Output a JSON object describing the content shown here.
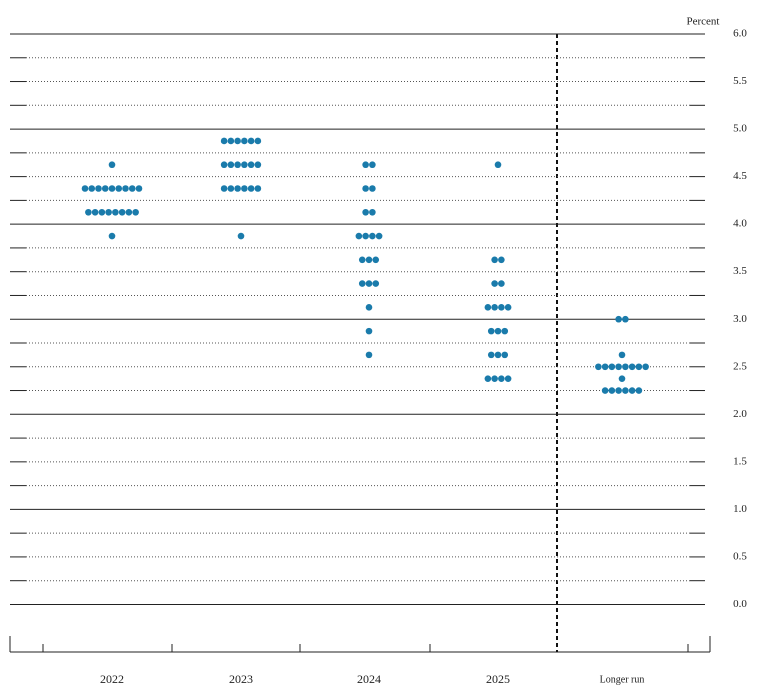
{
  "chart_data": {
    "type": "dot",
    "y_label": "Percent",
    "categories": [
      "2022",
      "2023",
      "2024",
      "2025",
      "Longer run"
    ],
    "color": "#1a7bab",
    "values": [
      [
        4.625,
        4.375,
        4.375,
        4.375,
        4.375,
        4.375,
        4.375,
        4.375,
        4.375,
        4.375,
        4.125,
        4.125,
        4.125,
        4.125,
        4.125,
        4.125,
        4.125,
        4.125,
        3.875
      ],
      [
        4.875,
        4.875,
        4.875,
        4.875,
        4.875,
        4.875,
        4.625,
        4.625,
        4.625,
        4.625,
        4.625,
        4.625,
        4.375,
        4.375,
        4.375,
        4.375,
        4.375,
        4.375,
        3.875
      ],
      [
        4.625,
        4.625,
        4.375,
        4.375,
        4.125,
        4.125,
        3.875,
        3.875,
        3.875,
        3.875,
        3.625,
        3.625,
        3.625,
        3.375,
        3.375,
        3.375,
        3.125,
        2.875,
        2.625
      ],
      [
        4.625,
        3.625,
        3.625,
        3.375,
        3.375,
        3.125,
        3.125,
        3.125,
        3.125,
        2.875,
        2.875,
        2.875,
        2.625,
        2.625,
        2.625,
        2.375,
        2.375,
        2.375,
        2.375
      ],
      [
        3.0,
        3.0,
        2.625,
        2.5,
        2.5,
        2.5,
        2.5,
        2.5,
        2.5,
        2.5,
        2.5,
        2.375,
        2.25,
        2.25,
        2.25,
        2.25,
        2.25,
        2.25
      ]
    ],
    "ylim": [
      -0.5,
      6.0
    ],
    "yticks": [
      {
        "value": 0,
        "label": "0.0"
      },
      {
        "value": 0.5,
        "label": "0.5"
      },
      {
        "value": 1,
        "label": "1.0"
      },
      {
        "value": 1.5,
        "label": "1.5"
      },
      {
        "value": 2,
        "label": "2.0"
      },
      {
        "value": 2.5,
        "label": "2.5"
      },
      {
        "value": 3,
        "label": "3.0"
      },
      {
        "value": 3.5,
        "label": "3.5"
      },
      {
        "value": 4,
        "label": "4.0"
      },
      {
        "value": 4.5,
        "label": "4.5"
      },
      {
        "value": 5,
        "label": "5.0"
      },
      {
        "value": 5.5,
        "label": "5.5"
      },
      {
        "value": 6,
        "label": "6.0"
      }
    ],
    "minor_yticks": [
      0,
      0.25,
      0.5,
      0.75,
      1,
      1.25,
      1.5,
      1.75,
      2,
      2.25,
      2.5,
      2.75,
      3,
      3.25,
      3.5,
      3.75,
      4,
      4.25,
      4.5,
      4.75,
      5,
      5.25,
      5.5,
      5.75,
      6
    ],
    "grid": true
  }
}
